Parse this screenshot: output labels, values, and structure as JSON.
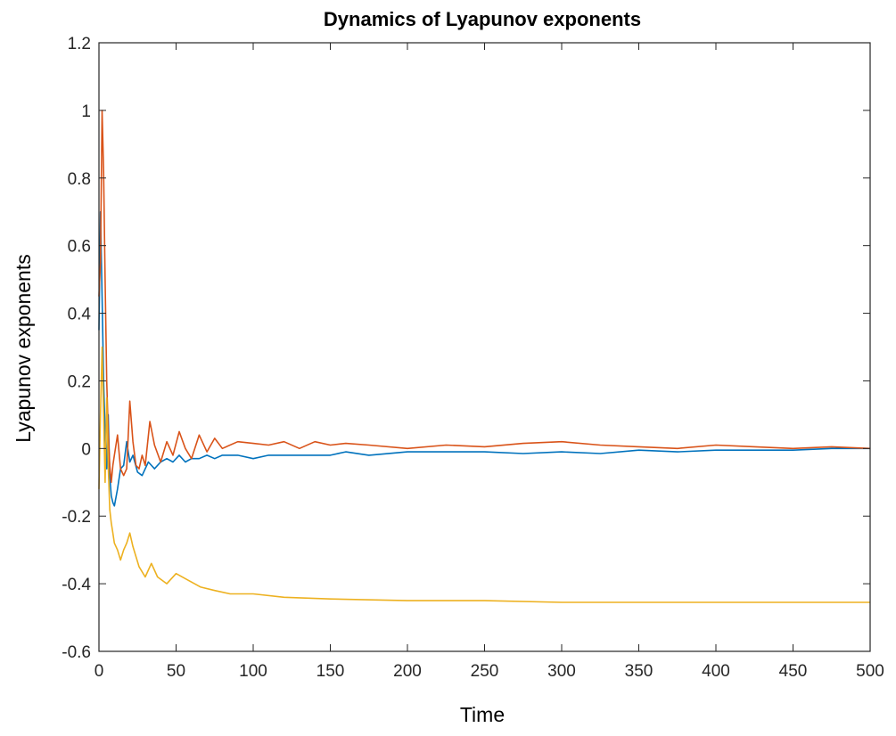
{
  "chart_data": {
    "type": "line",
    "title": "Dynamics of Lyapunov exponents",
    "xlabel": "Time",
    "ylabel": "Lyapunov exponents",
    "xlim": [
      0,
      500
    ],
    "ylim": [
      -0.6,
      1.2
    ],
    "xticks": [
      0,
      50,
      100,
      150,
      200,
      250,
      300,
      350,
      400,
      450,
      500
    ],
    "yticks": [
      -0.6,
      -0.4,
      -0.2,
      0,
      0.2,
      0.4,
      0.6,
      0.8,
      1,
      1.2
    ],
    "xtick_labels": [
      "0",
      "50",
      "100",
      "150",
      "200",
      "250",
      "300",
      "350",
      "400",
      "450",
      "500"
    ],
    "ytick_labels": [
      "-0.6",
      "-0.4",
      "-0.2",
      "0",
      "0.2",
      "0.4",
      "0.6",
      "0.8",
      "1",
      "1.2"
    ],
    "grid": false,
    "legend": "none",
    "series": [
      {
        "color": "#0072BD",
        "x": [
          0,
          1,
          2,
          3,
          4,
          5,
          6,
          7,
          8,
          9,
          10,
          12,
          14,
          16,
          18,
          20,
          22,
          25,
          28,
          32,
          36,
          40,
          44,
          48,
          52,
          56,
          60,
          65,
          70,
          75,
          80,
          90,
          100,
          110,
          120,
          130,
          140,
          150,
          160,
          175,
          200,
          225,
          250,
          275,
          300,
          325,
          350,
          375,
          400,
          425,
          450,
          475,
          500
        ],
        "y": [
          0.35,
          0.7,
          0.45,
          0.2,
          0.05,
          -0.06,
          0.1,
          -0.08,
          -0.14,
          -0.16,
          -0.17,
          -0.12,
          -0.06,
          -0.05,
          0.02,
          -0.04,
          -0.02,
          -0.07,
          -0.08,
          -0.04,
          -0.06,
          -0.04,
          -0.03,
          -0.04,
          -0.02,
          -0.04,
          -0.03,
          -0.03,
          -0.02,
          -0.03,
          -0.02,
          -0.02,
          -0.03,
          -0.02,
          -0.02,
          -0.02,
          -0.02,
          -0.02,
          -0.01,
          -0.02,
          -0.01,
          -0.01,
          -0.01,
          -0.015,
          -0.01,
          -0.015,
          -0.005,
          -0.01,
          -0.005,
          -0.005,
          -0.005,
          0.0,
          0.0
        ]
      },
      {
        "color": "#D95319",
        "x": [
          0,
          1,
          2,
          3,
          4,
          5,
          6,
          7,
          8,
          9,
          10,
          12,
          14,
          16,
          18,
          20,
          22,
          24,
          26,
          28,
          30,
          33,
          36,
          40,
          44,
          48,
          52,
          56,
          60,
          65,
          70,
          75,
          80,
          90,
          100,
          110,
          120,
          130,
          140,
          150,
          160,
          175,
          200,
          225,
          250,
          275,
          300,
          325,
          350,
          375,
          400,
          425,
          450,
          475,
          500
        ],
        "y": [
          0.45,
          0.55,
          1.0,
          0.82,
          0.5,
          0.2,
          0.05,
          -0.05,
          -0.1,
          -0.05,
          -0.02,
          0.04,
          -0.06,
          -0.08,
          -0.06,
          0.14,
          0.02,
          -0.05,
          -0.06,
          -0.02,
          -0.05,
          0.08,
          0.01,
          -0.04,
          0.02,
          -0.02,
          0.05,
          0.0,
          -0.03,
          0.04,
          -0.01,
          0.03,
          0.0,
          0.02,
          0.015,
          0.01,
          0.02,
          0.0,
          0.02,
          0.01,
          0.015,
          0.01,
          0.0,
          0.01,
          0.005,
          0.015,
          0.02,
          0.01,
          0.005,
          0.0,
          0.01,
          0.005,
          0.0,
          0.005,
          0.0
        ]
      },
      {
        "color": "#EDB120",
        "x": [
          0,
          1,
          2,
          3,
          4,
          5,
          6,
          7,
          8,
          9,
          10,
          12,
          14,
          16,
          18,
          20,
          22,
          26,
          30,
          34,
          38,
          44,
          50,
          58,
          66,
          75,
          85,
          100,
          120,
          150,
          200,
          250,
          300,
          350,
          400,
          450,
          500
        ],
        "y": [
          -0.12,
          0.1,
          0.3,
          0.1,
          -0.1,
          0.15,
          -0.05,
          -0.18,
          -0.22,
          -0.25,
          -0.28,
          -0.3,
          -0.33,
          -0.3,
          -0.28,
          -0.25,
          -0.29,
          -0.35,
          -0.38,
          -0.34,
          -0.38,
          -0.4,
          -0.37,
          -0.39,
          -0.41,
          -0.42,
          -0.43,
          -0.43,
          -0.44,
          -0.445,
          -0.45,
          -0.45,
          -0.455,
          -0.455,
          -0.455,
          -0.455,
          -0.455
        ]
      }
    ]
  }
}
